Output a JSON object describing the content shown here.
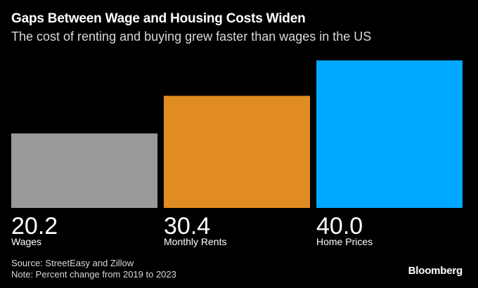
{
  "header": {
    "title": "Gaps Between Wage and Housing Costs Widen",
    "subtitle": "The cost of renting and buying grew faster than wages in the US"
  },
  "footer": {
    "source": "Source: StreetEasy and Zillow",
    "note": "Note: Percent change from 2019 to 2023",
    "brand": "Bloomberg"
  },
  "chart_data": {
    "type": "bar",
    "title": "Gaps Between Wage and Housing Costs Widen",
    "subtitle": "The cost of renting and buying grew faster than wages in the US",
    "categories": [
      "Wages",
      "Monthly Rents",
      "Home Prices"
    ],
    "values": [
      20.2,
      30.4,
      40.0
    ],
    "value_labels": [
      "20.2",
      "30.4",
      "40.0"
    ],
    "colors": [
      "#999999",
      "#e08c23",
      "#00a8ff"
    ],
    "xlabel": "",
    "ylabel": "",
    "ylim": [
      0,
      40
    ],
    "grid": false,
    "legend": "none"
  }
}
